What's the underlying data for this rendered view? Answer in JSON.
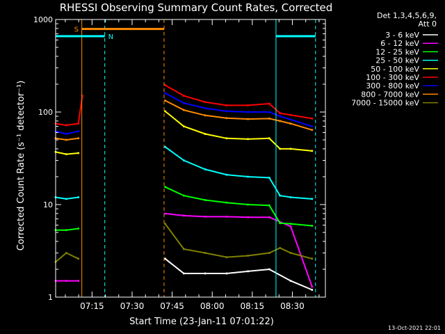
{
  "chart_data": {
    "type": "line",
    "title": "RHESSI Observing Summary Count Rates, Corrected",
    "xlabel": "Start Time (23-Jan-11 07:01:22)",
    "ylabel": "Corrected Count Rate (s⁻¹ detector⁻¹)",
    "x_tick_labels": [
      "07:15",
      "07:30",
      "07:45",
      "08:00",
      "08:15",
      "08:30"
    ],
    "x_tick_minutes": [
      13.63,
      28.63,
      43.63,
      58.63,
      73.63,
      88.63
    ],
    "xlim_minutes": [
      0,
      101
    ],
    "y_tick_labels": [
      "1",
      "10",
      "100",
      "1000"
    ],
    "yscale": "log",
    "ylim": [
      1,
      1000
    ],
    "legend_header": [
      "Det 1,3,4,5,6,9,",
      "Att 0"
    ],
    "legend_position": "top-right",
    "annotations": [
      {
        "label": "S",
        "color": "#ff8c00",
        "x_start": 9.8,
        "x_end": 40.6,
        "y": 790
      },
      {
        "label": "N",
        "color": "#00ffff",
        "x_start": 0,
        "x_end": 18.4,
        "y": 660
      },
      {
        "label": "",
        "color": "#00ffff",
        "x_start": 82.5,
        "x_end": 97.3,
        "y": 660
      }
    ],
    "vlines": [
      {
        "x": 9.8,
        "color": "#ff8c00",
        "style": "solid"
      },
      {
        "x": 40.6,
        "color": "#ff8c00",
        "style": "dashed"
      },
      {
        "x": 18.4,
        "color": "#00ffff",
        "style": "dashed"
      },
      {
        "x": 82.5,
        "color": "#00ffff",
        "style": "solid"
      },
      {
        "x": 97.3,
        "color": "#00ffff",
        "style": "dashed"
      }
    ],
    "series": [
      {
        "name": "3 - 6 keV",
        "color": "#ffffff",
        "x": [
          41,
          48,
          56,
          64,
          72,
          80,
          88,
          96
        ],
        "y": [
          2.6,
          1.8,
          1.8,
          1.8,
          1.9,
          2.0,
          1.5,
          1.2
        ]
      },
      {
        "name": "6 - 12 keV",
        "color": "#ff00ff",
        "x": [
          0,
          4,
          8.5,
          41,
          48,
          56,
          64,
          72,
          80,
          88,
          96
        ],
        "y": [
          1.5,
          1.5,
          1.5,
          8.0,
          7.6,
          7.4,
          7.4,
          7.3,
          7.3,
          5.8,
          1.3
        ]
      },
      {
        "name": "12 - 25 keV",
        "color": "#00ff00",
        "x": [
          0,
          4,
          8.5,
          41,
          48,
          56,
          64,
          72,
          80,
          84,
          88,
          96
        ],
        "y": [
          5.3,
          5.3,
          5.5,
          15.5,
          12.5,
          11.2,
          10.5,
          10.0,
          9.8,
          6.3,
          6.2,
          5.9
        ]
      },
      {
        "name": "25 - 50 keV",
        "color": "#00ffff",
        "x": [
          0,
          4,
          8.5,
          41,
          48,
          56,
          64,
          72,
          80,
          84,
          88,
          96
        ],
        "y": [
          12,
          11.5,
          12,
          42,
          30,
          24,
          21,
          20,
          19.5,
          12.5,
          12,
          11.5
        ]
      },
      {
        "name": "50 - 100 keV",
        "color": "#ffff00",
        "x": [
          0,
          4,
          8.5,
          41,
          48,
          56,
          64,
          72,
          80,
          84,
          88,
          96
        ],
        "y": [
          37,
          35,
          36,
          102,
          70,
          58,
          52,
          51,
          52,
          40,
          40,
          38
        ]
      },
      {
        "name": "100 - 300 keV",
        "color": "#ff0000",
        "x": [
          0,
          4,
          8.5,
          10,
          41,
          48,
          56,
          64,
          72,
          80,
          84,
          88,
          96
        ],
        "y": [
          75,
          72,
          75,
          150,
          195,
          150,
          128,
          118,
          118,
          123,
          97,
          93,
          85
        ]
      },
      {
        "name": "300 - 800 keV",
        "color": "#0000ff",
        "x": [
          0,
          4,
          8.5,
          41,
          48,
          56,
          64,
          72,
          80,
          84,
          88,
          96
        ],
        "y": [
          62,
          58,
          62,
          160,
          125,
          110,
          102,
          100,
          100,
          90,
          83,
          70
        ]
      },
      {
        "name": "800 - 7000 keV",
        "color": "#ff8c00",
        "x": [
          0,
          4,
          8.5,
          41,
          48,
          56,
          64,
          72,
          80,
          84,
          88,
          96
        ],
        "y": [
          52,
          50,
          52,
          133,
          105,
          92,
          86,
          84,
          85,
          80,
          75,
          64
        ]
      },
      {
        "name": "7000 - 15000 keV",
        "color": "#808000",
        "x": [
          0,
          4,
          8.5,
          41,
          48,
          56,
          64,
          72,
          80,
          84,
          88,
          96
        ],
        "y": [
          2.4,
          3.0,
          2.6,
          6.2,
          3.3,
          3.0,
          2.7,
          2.8,
          3.0,
          3.4,
          3.0,
          2.6
        ]
      }
    ],
    "footer": "13-Oct-2021 22:01"
  }
}
